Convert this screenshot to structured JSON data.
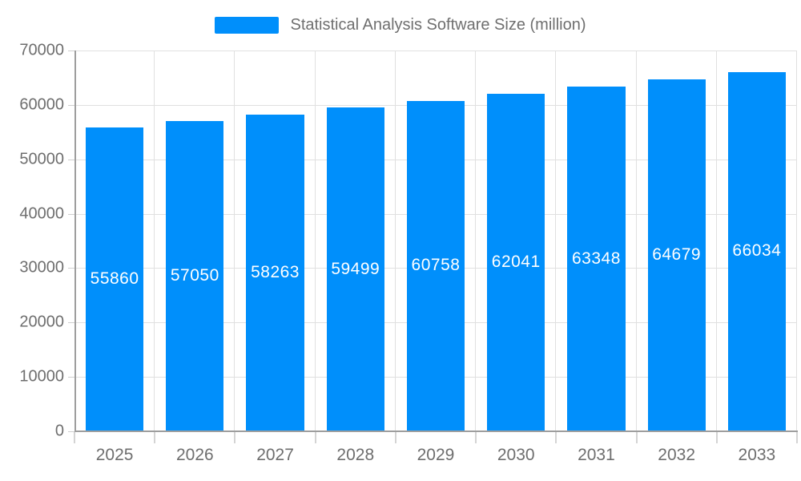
{
  "chart_data": {
    "type": "bar",
    "title": "Statistical Analysis Software Size (million)",
    "categories": [
      "2025",
      "2026",
      "2027",
      "2028",
      "2029",
      "2030",
      "2031",
      "2032",
      "2033"
    ],
    "values": [
      55860,
      57050,
      58263,
      59499,
      60758,
      62041,
      63348,
      64679,
      66034
    ],
    "value_labels": [
      "55860",
      "57050",
      "58263",
      "59499",
      "60758",
      "62041",
      "63348",
      "64679",
      "66034"
    ],
    "xlabel": "",
    "ylabel": "",
    "ylim": [
      0,
      70000
    ],
    "ytick_step": 10000,
    "ytick_labels": [
      "0",
      "10000",
      "20000",
      "30000",
      "40000",
      "50000",
      "60000",
      "70000"
    ],
    "grid": "on",
    "legend_position": "top-center",
    "colors": {
      "bar": "#008FFB",
      "grid": "#e0e0e0",
      "axis_line": "#9e9e9e",
      "tick": "#cfcfcf",
      "axis_text": "#6e6e6e",
      "value_text": "#ffffff",
      "legend_text": "#6f6f6f"
    }
  }
}
